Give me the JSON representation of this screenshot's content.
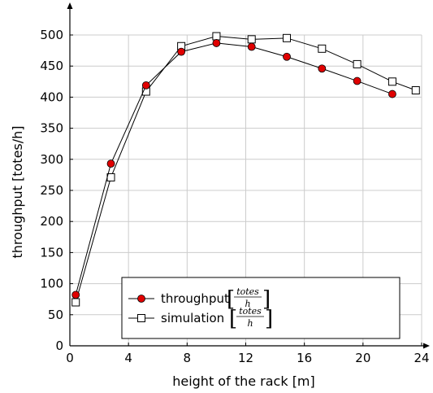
{
  "chart_data": {
    "type": "line",
    "title": "",
    "xlabel": "height of the rack [m]",
    "ylabel": "throughput [totes/h]",
    "xlim": [
      0,
      24
    ],
    "ylim": [
      0,
      500
    ],
    "x_ticks": [
      0,
      4,
      8,
      12,
      16,
      20,
      24
    ],
    "y_ticks": [
      0,
      50,
      100,
      150,
      200,
      250,
      300,
      350,
      400,
      450,
      500
    ],
    "grid": true,
    "legend_position": "bottom-center",
    "series": [
      {
        "name": "throughput",
        "unit_numerator": "totes",
        "unit_denominator": "h",
        "marker": "circle",
        "marker_color": "#e00000",
        "x": [
          0.4,
          2.8,
          5.2,
          7.6,
          10.0,
          12.4,
          14.8,
          17.2,
          19.6,
          22.0
        ],
        "values": [
          82,
          293,
          419,
          473,
          487,
          481,
          465,
          446,
          426,
          405
        ]
      },
      {
        "name": "simulation",
        "unit_numerator": "totes",
        "unit_denominator": "h",
        "marker": "square",
        "marker_color": "#ffffff",
        "x": [
          0.4,
          2.8,
          5.2,
          7.6,
          10.0,
          12.4,
          14.8,
          17.2,
          19.6,
          22.0,
          23.6
        ],
        "values": [
          70,
          271,
          409,
          482,
          498,
          493,
          495,
          478,
          453,
          425,
          411
        ]
      }
    ]
  }
}
